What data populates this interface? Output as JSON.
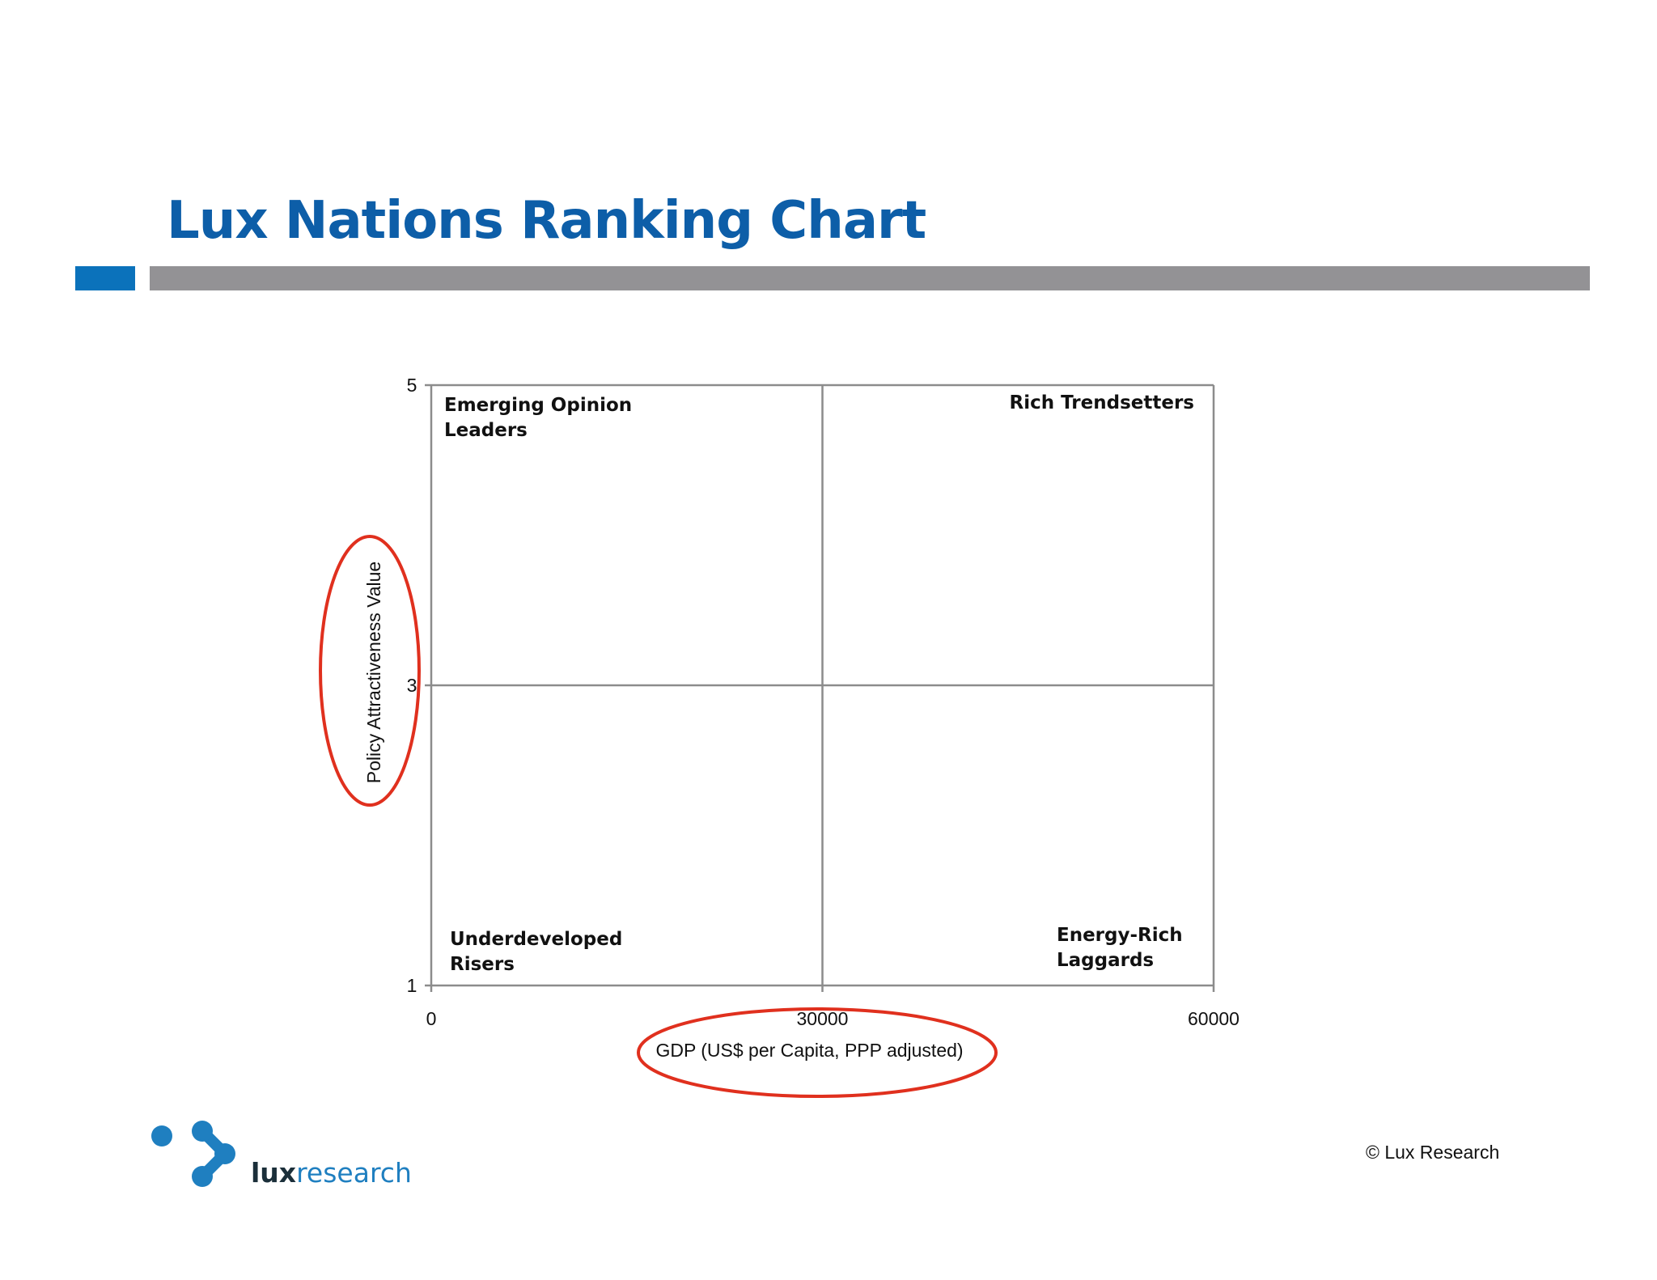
{
  "slide": {
    "title": "Lux Nations Ranking Chart",
    "accent_color": "#0b72bb",
    "title_color": "#0d5ea8",
    "rule_color": "#939295",
    "copyright": "© Lux Research"
  },
  "logo": {
    "word_bold": "lux",
    "word_light": "research",
    "color_dark": "#1b2f3a",
    "color_blue": "#1f7fc0"
  },
  "chart_data": {
    "type": "scatter",
    "title": "",
    "xlabel": "GDP  (US$ per Capita, PPP adjusted)",
    "ylabel": "Policy Attractiveness Value",
    "xlim": [
      0,
      60000
    ],
    "ylim": [
      1,
      5
    ],
    "x_ticks": [
      "0",
      "30000",
      "60000"
    ],
    "y_ticks": [
      "5",
      "3",
      "1"
    ],
    "x_divider": 30000,
    "y_divider": 3,
    "grid": false,
    "series": [],
    "quadrants": [
      {
        "position": "top-left",
        "lines": [
          "Emerging Opinion",
          "Leaders"
        ]
      },
      {
        "position": "top-right",
        "lines": [
          "Rich Trendsetters"
        ]
      },
      {
        "position": "bottom-left",
        "lines": [
          "Underdeveloped",
          "Risers"
        ]
      },
      {
        "position": "bottom-right",
        "lines": [
          "Energy-Rich",
          "Laggards"
        ]
      }
    ],
    "highlights": [
      "ylabel",
      "xlabel"
    ],
    "highlight_color": "#e0301e"
  }
}
